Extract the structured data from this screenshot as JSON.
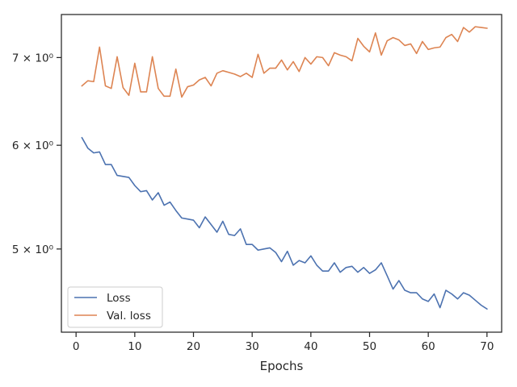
{
  "chart_data": {
    "type": "line",
    "xlabel": "Epochs",
    "ylabel": "",
    "yscale": "log",
    "xlim": [
      -2.5,
      72.5
    ],
    "ylim": [
      4.32,
      7.55
    ],
    "xticks": [
      0,
      10,
      20,
      30,
      40,
      50,
      60,
      70
    ],
    "xtick_labels": [
      "0",
      "10",
      "20",
      "30",
      "40",
      "50",
      "60",
      "70"
    ],
    "yticks": [
      5,
      6,
      7
    ],
    "ytick_labels": [
      "5 × 10⁰",
      "6 × 10⁰",
      "7 × 10⁰"
    ],
    "grid": false,
    "legend_position": "lower-left",
    "x": [
      1,
      2,
      3,
      4,
      5,
      6,
      7,
      8,
      9,
      10,
      11,
      12,
      13,
      14,
      15,
      16,
      17,
      18,
      19,
      20,
      21,
      22,
      23,
      24,
      25,
      26,
      27,
      28,
      29,
      30,
      31,
      32,
      33,
      34,
      35,
      36,
      37,
      38,
      39,
      40,
      41,
      42,
      43,
      44,
      45,
      46,
      47,
      48,
      49,
      50,
      51,
      52,
      53,
      54,
      55,
      56,
      57,
      58,
      59,
      60,
      61,
      62,
      63,
      64,
      65,
      66,
      67,
      68,
      69,
      70
    ],
    "series": [
      {
        "name": "Loss",
        "color": "#4c72b0",
        "values": [
          6.08,
          5.97,
          5.92,
          5.93,
          5.8,
          5.8,
          5.69,
          5.68,
          5.67,
          5.59,
          5.53,
          5.54,
          5.45,
          5.52,
          5.4,
          5.43,
          5.35,
          5.28,
          5.27,
          5.26,
          5.19,
          5.29,
          5.22,
          5.15,
          5.25,
          5.13,
          5.12,
          5.18,
          5.04,
          5.04,
          4.99,
          5.0,
          5.01,
          4.97,
          4.89,
          4.98,
          4.86,
          4.9,
          4.88,
          4.94,
          4.86,
          4.81,
          4.81,
          4.88,
          4.8,
          4.84,
          4.85,
          4.8,
          4.84,
          4.79,
          4.82,
          4.88,
          4.77,
          4.66,
          4.73,
          4.65,
          4.63,
          4.63,
          4.58,
          4.56,
          4.62,
          4.51,
          4.65,
          4.62,
          4.58,
          4.63,
          4.61,
          4.57,
          4.53,
          4.5
        ]
      },
      {
        "name": "Val. loss",
        "color": "#dd8452",
        "values": [
          6.66,
          6.72,
          6.71,
          7.13,
          6.66,
          6.63,
          7.01,
          6.64,
          6.55,
          6.93,
          6.59,
          6.59,
          7.01,
          6.63,
          6.54,
          6.54,
          6.86,
          6.53,
          6.65,
          6.67,
          6.73,
          6.76,
          6.66,
          6.81,
          6.84,
          6.82,
          6.8,
          6.77,
          6.81,
          6.76,
          7.04,
          6.81,
          6.87,
          6.87,
          6.97,
          6.85,
          6.95,
          6.83,
          7.0,
          6.92,
          7.01,
          7.0,
          6.9,
          7.06,
          7.03,
          7.01,
          6.96,
          7.24,
          7.14,
          7.07,
          7.31,
          7.03,
          7.21,
          7.25,
          7.22,
          7.15,
          7.17,
          7.05,
          7.2,
          7.1,
          7.12,
          7.13,
          7.25,
          7.29,
          7.2,
          7.38,
          7.32,
          7.39,
          7.38,
          7.37
        ]
      }
    ]
  }
}
